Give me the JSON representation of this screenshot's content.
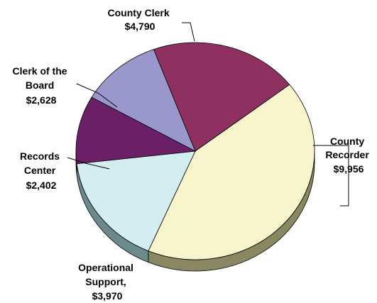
{
  "chart_data": {
    "type": "pie",
    "title": "",
    "slices": [
      {
        "label": "County Clerk",
        "value": 4790,
        "value_label": "$4,790",
        "color": "#8E3160",
        "side_color": "#5A1E3D"
      },
      {
        "label": "County Recorder",
        "value": 9956,
        "value_label": "$9,956",
        "color": "#F8F5CC",
        "side_color": "#8A8862"
      },
      {
        "label": "Operational Support,",
        "value": 3970,
        "value_label": "$3,970",
        "color": "#D3EDF1",
        "side_color": "#6A8A8C"
      },
      {
        "label": "Records Center",
        "value": 2402,
        "value_label": "$2,402",
        "color": "#6A1F67",
        "side_color": "#3E1040"
      },
      {
        "label": "Clerk of the Board",
        "value": 2628,
        "value_label": "$2,628",
        "color": "#9898CC",
        "side_color": "#5E5E88"
      }
    ],
    "label_lines": [
      [
        "County Clerk",
        "$4,790"
      ],
      [
        "County",
        "Recorder",
        "$9,956"
      ],
      [
        "Operational",
        "Support,",
        "$3,970"
      ],
      [
        "Records",
        "Center",
        "$2,402"
      ],
      [
        "Clerk of the",
        "Board",
        "$2,628"
      ]
    ]
  }
}
